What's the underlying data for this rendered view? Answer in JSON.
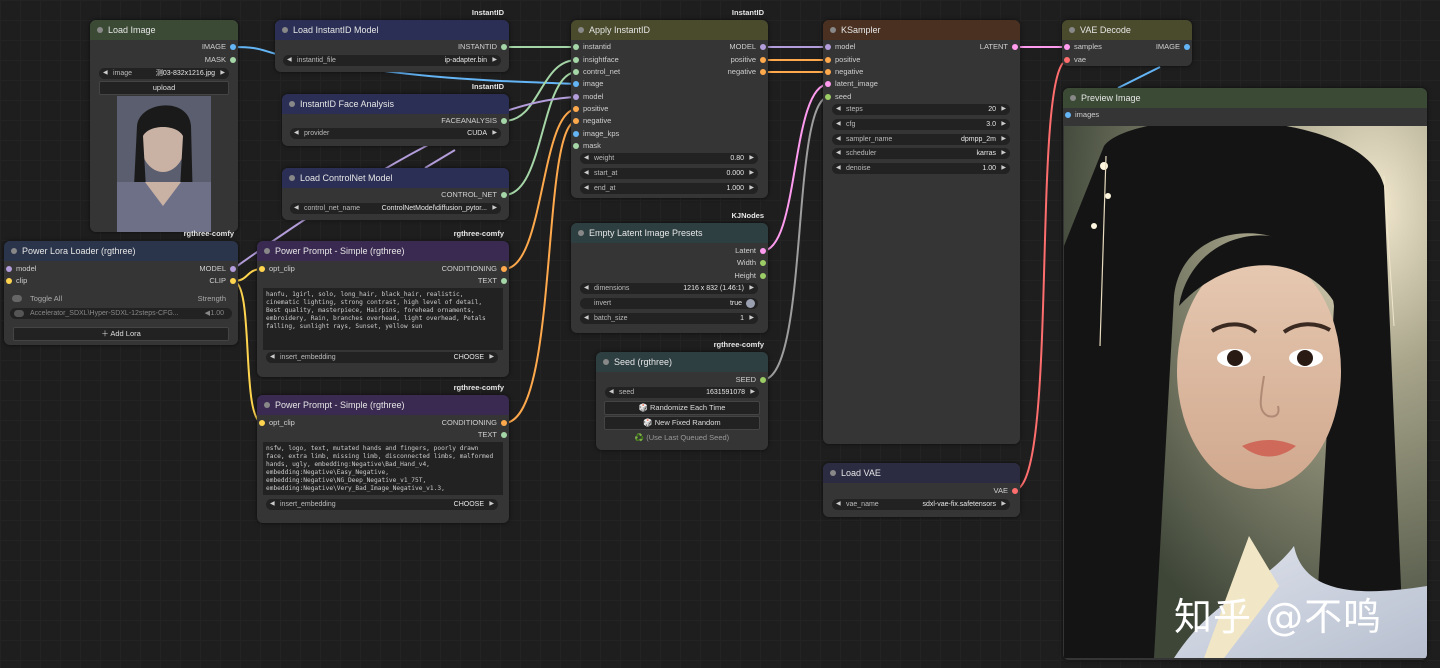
{
  "colors": {
    "model": "#b39ddb",
    "clip": "#ffd54f",
    "cond": "#ffa94d",
    "image": "#64b5f6",
    "latent": "#ff9cf0",
    "vae": "#ff6e6e",
    "misc": "#a5d6a7",
    "int": "#9ccc65"
  },
  "load_image": {
    "title": "Load Image",
    "out_image": "IMAGE",
    "out_mask": "MASK",
    "widget_label": "image",
    "widget_value": "测03-832x1216.jpg",
    "upload": "upload"
  },
  "instantid_model": {
    "tag": "InstantID",
    "title": "Load InstantID Model",
    "out": "INSTANTID",
    "widget_label": "instantid_file",
    "widget_value": "ip-adapter.bin"
  },
  "face_analysis": {
    "tag": "InstantID",
    "title": "InstantID Face Analysis",
    "out": "FACEANALYSIS",
    "widget_label": "provider",
    "widget_value": "CUDA"
  },
  "controlnet": {
    "title": "Load ControlNet Model",
    "out": "CONTROL_NET",
    "widget_label": "control_net_name",
    "widget_value": "ControlNetModel\\diffusion_pytor..."
  },
  "apply_instantid": {
    "tag": "InstantID",
    "title": "Apply InstantID",
    "inputs": [
      "instantid",
      "insightface",
      "control_net",
      "image",
      "model",
      "positive",
      "negative",
      "image_kps",
      "mask"
    ],
    "outputs": [
      "MODEL",
      "positive",
      "negative"
    ],
    "weight_label": "weight",
    "weight": "0.80",
    "start_label": "start_at",
    "start": "0.000",
    "end_label": "end_at",
    "end": "1.000"
  },
  "ksampler": {
    "title": "KSampler",
    "inputs": [
      "model",
      "positive",
      "negative",
      "latent_image",
      "seed"
    ],
    "out": "LATENT",
    "widgets": [
      {
        "label": "steps",
        "value": "20"
      },
      {
        "label": "cfg",
        "value": "3.0"
      },
      {
        "label": "sampler_name",
        "value": "dpmpp_2m"
      },
      {
        "label": "scheduler",
        "value": "karras"
      },
      {
        "label": "denoise",
        "value": "1.00"
      }
    ]
  },
  "vae_decode": {
    "title": "VAE Decode",
    "in_samples": "samples",
    "in_vae": "vae",
    "out": "IMAGE"
  },
  "preview": {
    "title": "Preview Image",
    "in": "images",
    "watermark": "知乎 @不鸣"
  },
  "lora": {
    "title": "Power Lora Loader (rgthree)",
    "in_model": "model",
    "in_clip": "clip",
    "out_model": "MODEL",
    "out_clip": "CLIP",
    "toggle_all": "Toggle All",
    "strength": "Strength",
    "lora_name": "Accelerator_SDXL\\Hyper-SDXL-12steps-CFG...",
    "lora_strength": "1.00",
    "add": "Add Lora",
    "tag": "rgthree-comfy"
  },
  "prompt_pos": {
    "tag": "rgthree-comfy",
    "title": "Power Prompt - Simple (rgthree)",
    "in": "opt_clip",
    "out_cond": "CONDITIONING",
    "out_text": "TEXT",
    "text": "hanfu, 1girl, solo, long_hair, black_hair, realistic, cinematic lighting, strong contrast, high level of detail, Best quality, masterpiece, Hairpins, forehead ornaments, embroidery, Rain, branches overhead, light overhead, Petals falling, sunlight rays, Sunset, yellow sun",
    "embed_label": "insert_embedding",
    "embed_value": "CHOOSE"
  },
  "prompt_neg": {
    "tag": "rgthree-comfy",
    "title": "Power Prompt - Simple (rgthree)",
    "in": "opt_clip",
    "out_cond": "CONDITIONING",
    "out_text": "TEXT",
    "text": "nsfw, logo, text,  mutated hands and fingers, poorly drawn face, extra limb, missing limb, disconnected limbs, malformed hands, ugly, embedding:Negative\\Bad_Hand_v4, embedding:Negative\\Easy_Negative, embedding:Negative\\NG_Deep_Negative_v1_75T, embedding:Negative\\Very_Bad_Image_Negative_v1.3,",
    "embed_label": "insert_embedding",
    "embed_value": "CHOOSE"
  },
  "latent_presets": {
    "tag": "KJNodes",
    "title": "Empty Latent Image Presets",
    "outputs": [
      "Latent",
      "Width",
      "Height"
    ],
    "dim_label": "dimensions",
    "dim_value": "1216 x 832 (1.46:1)",
    "invert_label": "invert",
    "invert_value": "true",
    "batch_label": "batch_size",
    "batch_value": "1"
  },
  "seed": {
    "tag": "rgthree-comfy",
    "title": "Seed (rgthree)",
    "out": "SEED",
    "seed_label": "seed",
    "seed_value": "1631591078",
    "btn_random": "🎲 Randomize Each Time",
    "btn_fixed": "🎲 New Fixed Random",
    "btn_last": "♻️ (Use Last Queued Seed)"
  },
  "load_vae": {
    "title": "Load VAE",
    "out": "VAE",
    "widget_label": "vae_name",
    "widget_value": "sdxl-vae-fix.safetensors"
  }
}
